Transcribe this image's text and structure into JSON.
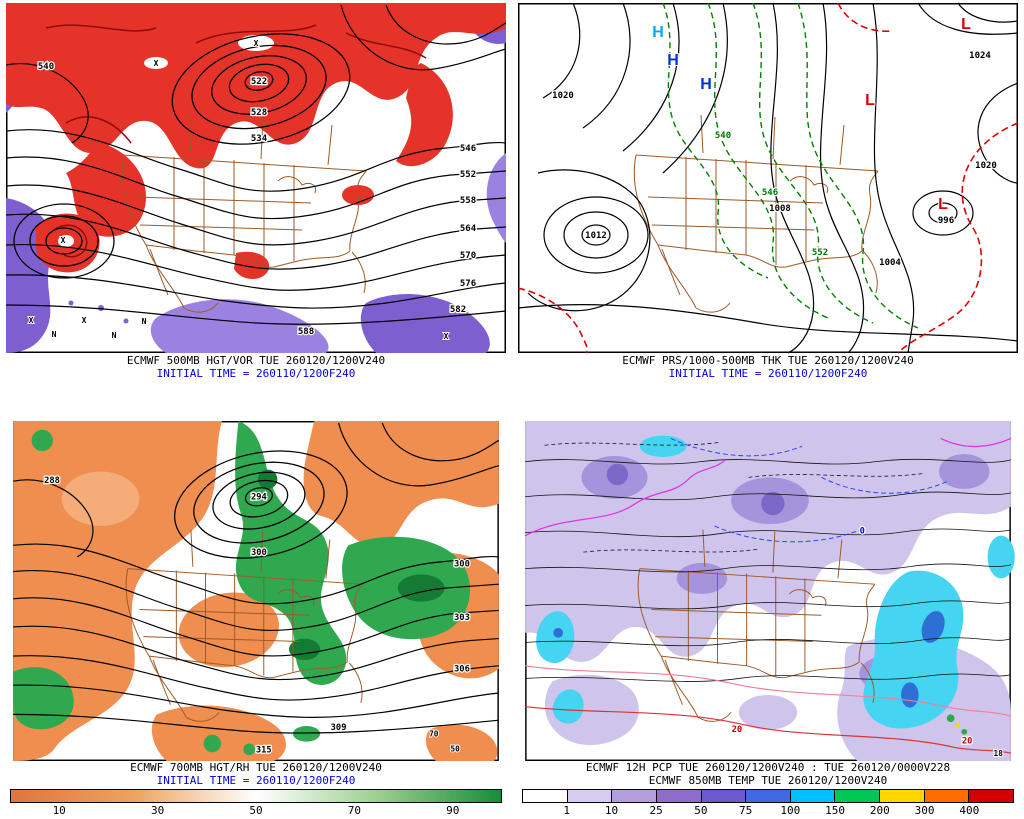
{
  "panels": [
    {
      "caption1": "ECMWF 500MB HGT/VOR TUE 260120/1200V240",
      "caption2": "INITIAL TIME = 260110/1200F240",
      "labels": [
        "522",
        "528",
        "534",
        "540",
        "546",
        "552",
        "558",
        "564",
        "570",
        "576",
        "582",
        "588"
      ],
      "markers": [
        "X",
        "N",
        "X",
        "N",
        "N",
        "X",
        "X",
        "X",
        "X"
      ]
    },
    {
      "caption1": "ECMWF PRS/1000-500MB THK TUE 260120/1200V240",
      "caption2": "INITIAL TIME = 260110/1200F240",
      "pressure_labels": [
        "1020",
        "1012",
        "1008",
        "1004",
        "996",
        "1020",
        "1024"
      ],
      "thickness_labels": [
        "540",
        "546",
        "552"
      ],
      "highs": [
        "H",
        "H",
        "H"
      ],
      "lows": [
        "L",
        "L",
        "L"
      ]
    },
    {
      "caption1": "ECMWF 700MB HGT/RH TUE 260120/1200V240",
      "caption2": "INITIAL TIME = 260110/1200F240",
      "labels": [
        "294",
        "300",
        "300",
        "303",
        "306",
        "309",
        "315",
        "288"
      ],
      "rh_labels": [
        "70",
        "50"
      ]
    },
    {
      "caption1": "ECMWF 12H PCP TUE 260120/1200V240 : TUE 260120/0000V228",
      "caption2": "ECMWF 850MB TEMP TUE 260120/1200V240",
      "temp_labels_red": [
        "20",
        "20"
      ],
      "temp_labels_blue": [
        "0"
      ],
      "misc_labels": [
        "18"
      ]
    }
  ],
  "colorbars": {
    "rh": {
      "ticks": [
        "10",
        "30",
        "50",
        "70",
        "90"
      ],
      "gradient": [
        "#e0763c",
        "#eda35f",
        "#ffffff",
        "#9ccf8f",
        "#188c38"
      ]
    },
    "pcp": {
      "ticks": [
        "1",
        "10",
        "25",
        "50",
        "75",
        "100",
        "150",
        "200",
        "300",
        "400"
      ],
      "colors": [
        "#ffffff",
        "#d8ccf0",
        "#b49ddd",
        "#8f6cc9",
        "#6a5acd",
        "#4169e1",
        "#00bfff",
        "#00c853",
        "#ffd600",
        "#ff6d00",
        "#d50000"
      ]
    }
  },
  "colors": {
    "vorticity_positive": "#e63329",
    "vorticity_negative": "#7e5fd0",
    "rh_dry": "#ef8e4e",
    "rh_moist": "#2fa84f",
    "initial_time_text": "#0000e0"
  }
}
